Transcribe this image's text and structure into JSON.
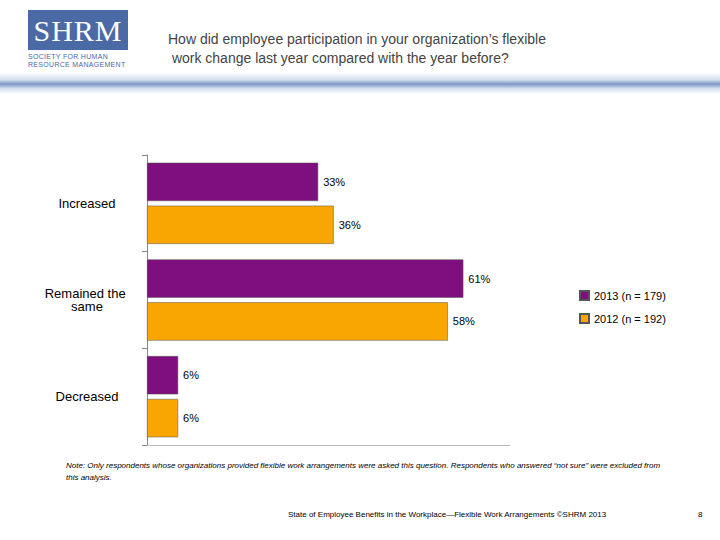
{
  "chart_data": {
    "type": "bar",
    "orientation": "horizontal",
    "title": "How did employee participation in your organization’s flexible work change last year compared with the year before?",
    "categories": [
      "Increased",
      "Remained the same",
      "Decreased"
    ],
    "series": [
      {
        "name": "2013 (n = 179)",
        "color": "#7f0f7e",
        "values": [
          33,
          61,
          6
        ],
        "value_labels": [
          "33%",
          "61%",
          "6%"
        ]
      },
      {
        "name": "2012 (n = 192)",
        "color": "#f9a602",
        "values": [
          36,
          58,
          6
        ],
        "value_labels": [
          "36%",
          "58%",
          "6%"
        ]
      }
    ],
    "xlim": [
      0,
      70
    ],
    "data_labels": true,
    "tick_labels": "y",
    "legend": "right",
    "grid": false
  },
  "page": {
    "logo": {
      "mark": "SHRM",
      "lines": [
        "SOCIETY FOR HUMAN",
        "RESOURCE MANAGEMENT"
      ]
    },
    "note": "Note: Only respondents whose organizations provided flexible work arrangements were asked this question. Respondents who answered “not sure” were excluded from this analysis.",
    "footer": "State of Employee Benefits in the Workplace—Flexible Work Arrangements ©SHRM 2013",
    "page_number": 8
  }
}
